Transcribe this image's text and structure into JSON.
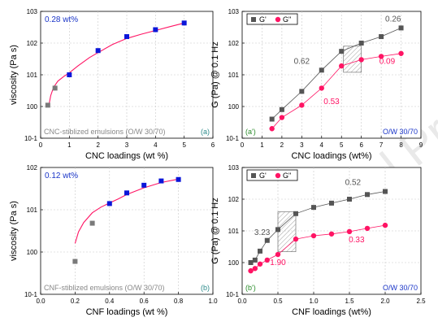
{
  "watermark": "Journal Pre-proof",
  "colors": {
    "grey": "#555555",
    "blue": "#0b16d9",
    "pink": "#ff1464",
    "teal": "#2c8a8a",
    "note_grey": "#888888",
    "blue_text": "#1a35c8"
  },
  "chart_data": [
    {
      "type": "scatter",
      "panel": "(a)",
      "ylabel": "viscosity (Pa s)",
      "xlabel": "CNC loadings (wt %)",
      "xlim": [
        0,
        6
      ],
      "ylim": [
        0.1,
        1000
      ],
      "yscale": "log",
      "xticks": [
        "0",
        "1",
        "2",
        "3",
        "4",
        "5",
        "6"
      ],
      "yticks": [
        "10-1",
        "100",
        "101",
        "102",
        "103"
      ],
      "grid": true,
      "top_left_text": "0.28 wt%",
      "bottom_text": "CNC-stiblized emulsions (O/W 30/70)",
      "series": [
        {
          "marker": "square",
          "color": "#7a7a7a",
          "x": [
            0.25,
            0.5
          ],
          "y": [
            1.1,
            3.8
          ]
        },
        {
          "marker": "square",
          "color": "#0b16d9",
          "x": [
            1,
            2,
            3,
            4,
            5
          ],
          "y": [
            10,
            58,
            160,
            265,
            430
          ]
        }
      ],
      "fit": {
        "color": "#ff1464",
        "x": [
          0.28,
          0.35,
          0.45,
          0.6,
          0.8,
          1.0,
          1.3,
          1.7,
          2.0,
          2.5,
          3.0,
          3.5,
          4.0,
          4.5,
          5.0
        ],
        "y": [
          1.0,
          2.2,
          4.0,
          6.3,
          8.8,
          11.5,
          19,
          35,
          50,
          90,
          140,
          190,
          250,
          330,
          430
        ]
      }
    },
    {
      "type": "scatter",
      "panel": "(a')",
      "ylabel": "G (Pa) @ 0.1 Hz",
      "xlabel": "CNC loadings (wt%)",
      "xlim": [
        0,
        9
      ],
      "ylim": [
        0.1,
        1000
      ],
      "yscale": "log",
      "xticks": [
        "0",
        "1",
        "2",
        "3",
        "4",
        "5",
        "6",
        "7",
        "8",
        "9"
      ],
      "yticks": [
        "10-1",
        "100",
        "101",
        "102",
        "103"
      ],
      "grid": true,
      "bottom_right_text": "O/W 30/70",
      "legend": [
        "G'",
        "G\""
      ],
      "series": [
        {
          "name": "G'",
          "marker": "square",
          "color": "#555555",
          "x": [
            1.5,
            2.0,
            3.0,
            4.0,
            5.0,
            6.0,
            7.0,
            8.0
          ],
          "y": [
            0.4,
            0.8,
            3.0,
            14,
            55,
            100,
            160,
            300
          ]
        },
        {
          "name": "G\"",
          "marker": "circle",
          "color": "#ff1464",
          "x": [
            1.5,
            2.0,
            3.0,
            4.0,
            5.0,
            6.0,
            7.0,
            8.0
          ],
          "y": [
            0.2,
            0.45,
            1.1,
            3.8,
            19,
            30,
            38,
            47
          ]
        }
      ],
      "slopes": [
        "0.62",
        "0.26",
        "0.53",
        "0.09"
      ],
      "hatched_box": {
        "x": [
          5.1,
          6.0
        ],
        "y": [
          12,
          80
        ]
      }
    },
    {
      "type": "scatter",
      "panel": "(b)",
      "ylabel": "viscosity (Pa s)",
      "xlabel": "CNF loadings (wt %)",
      "xlim": [
        0,
        1
      ],
      "ylim": [
        0.1,
        100
      ],
      "yscale": "log",
      "xticks": [
        "0.0",
        "0.2",
        "0.4",
        "0.6",
        "0.8",
        "1.0"
      ],
      "yticks": [
        "10-1",
        "100",
        "101",
        "102"
      ],
      "grid": true,
      "top_left_text": "0.12 wt%",
      "bottom_text": "CNF-stiblized emulsions (O/W 30/70)",
      "series": [
        {
          "marker": "square",
          "color": "#7a7a7a",
          "x": [
            0.2,
            0.3
          ],
          "y": [
            0.6,
            4.8
          ]
        },
        {
          "marker": "square",
          "color": "#0b16d9",
          "x": [
            0.4,
            0.5,
            0.6,
            0.7,
            0.8
          ],
          "y": [
            14,
            25,
            38,
            48,
            52
          ]
        }
      ],
      "fit": {
        "color": "#ff1464",
        "x": [
          0.2,
          0.22,
          0.25,
          0.3,
          0.35,
          0.4,
          0.45,
          0.5,
          0.6,
          0.7,
          0.8
        ],
        "y": [
          1.6,
          3.0,
          5.0,
          8.5,
          11.5,
          14.5,
          18,
          23,
          33,
          44,
          53
        ]
      }
    },
    {
      "type": "scatter",
      "panel": "(b')",
      "ylabel": "G (Pa) @ 0.1 Hz",
      "xlabel": "CNF loadings (wt%)",
      "xlim": [
        0,
        2.5
      ],
      "ylim": [
        0.1,
        1000
      ],
      "yscale": "log",
      "xticks": [
        "0.0",
        "0.5",
        "1.0",
        "1.5",
        "2.0",
        "2.5"
      ],
      "yticks": [
        "10-1",
        "100",
        "101",
        "102",
        "103"
      ],
      "grid": true,
      "bottom_right_text": "O/W 30/70",
      "legend": [
        "G'",
        "G\""
      ],
      "series": [
        {
          "name": "G'",
          "marker": "square",
          "color": "#555555",
          "x": [
            0.12,
            0.18,
            0.25,
            0.35,
            0.5,
            0.75,
            1.0,
            1.25,
            1.5,
            1.75,
            2.0
          ],
          "y": [
            1.0,
            1.2,
            2.3,
            5.0,
            11,
            35,
            55,
            75,
            100,
            140,
            175
          ]
        },
        {
          "name": "G\"",
          "marker": "circle",
          "color": "#ff1464",
          "x": [
            0.12,
            0.18,
            0.25,
            0.35,
            0.5,
            0.75,
            1.0,
            1.25,
            1.5,
            1.75,
            2.0
          ],
          "y": [
            0.55,
            0.65,
            0.9,
            1.2,
            1.8,
            5.5,
            7.0,
            8.0,
            9.5,
            12,
            15
          ]
        }
      ],
      "slopes": [
        "3.23",
        "0.52",
        "1.90",
        "0.33"
      ],
      "hatched_box": {
        "x": [
          0.5,
          0.75
        ],
        "y": [
          2.2,
          40
        ]
      }
    }
  ]
}
